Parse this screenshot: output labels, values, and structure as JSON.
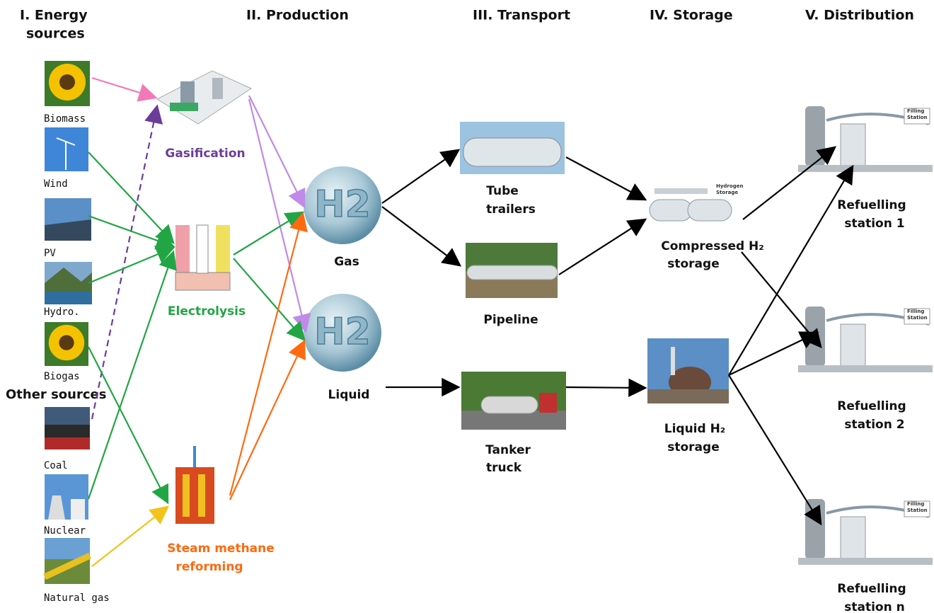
{
  "headers": {
    "energy_sources": [
      "I. Energy",
      "sources"
    ],
    "production": "II. Production",
    "transport": "III. Transport",
    "storage": "IV. Storage",
    "distribution": "V. Distribution"
  },
  "sources": {
    "items": [
      "Biomass",
      "Wind",
      "PV",
      "Hydro.",
      "Biogas",
      "Coal",
      "Nuclear",
      "Natural gas"
    ],
    "other": "Other sources"
  },
  "production": {
    "gasification": "Gasification",
    "electrolysis": "Electrolysis",
    "steam_methane_reforming": [
      "Steam methane",
      "reforming"
    ],
    "h2_symbol": "H2",
    "gas": "Gas",
    "liquid": "Liquid"
  },
  "transport": {
    "tube_trailers": [
      "Tube",
      "trailers"
    ],
    "pipeline": "Pipeline",
    "tanker_truck": [
      "Tanker",
      "truck"
    ]
  },
  "storage": {
    "compressed": [
      "Compressed H₂",
      "storage"
    ],
    "liquid": [
      "Liquid H₂",
      "storage"
    ],
    "tank_label": [
      "Hydrogen",
      "Storage"
    ]
  },
  "distribution": {
    "stations": [
      [
        "Refuelling",
        "station 1"
      ],
      [
        "Refuelling",
        "station 2"
      ],
      [
        "Refuelling",
        "station n"
      ]
    ],
    "station_sign": [
      "Filling",
      "Station"
    ]
  }
}
